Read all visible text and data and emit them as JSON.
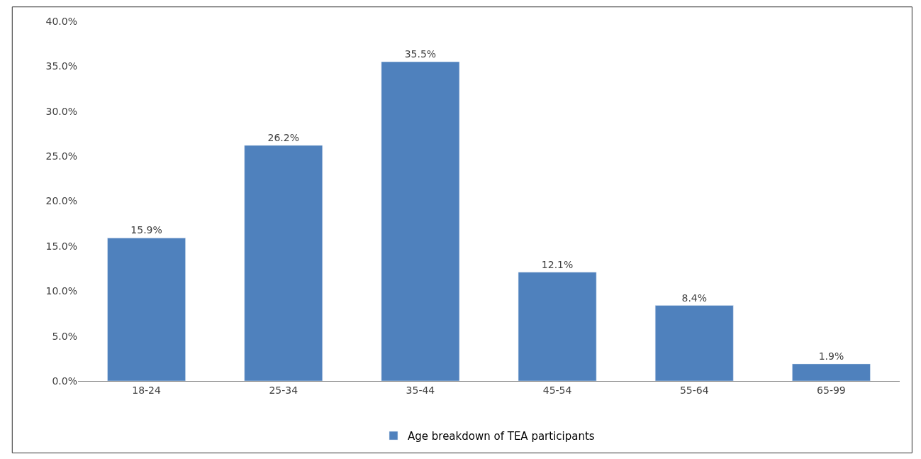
{
  "chart_data": {
    "type": "bar",
    "categories": [
      "18-24",
      "25-34",
      "35-44",
      "45-54",
      "55-64",
      "65-99"
    ],
    "series": [
      {
        "name": "Age breakdown of TEA participants",
        "color": "#4f81bd",
        "values": [
          15.9,
          26.2,
          35.5,
          12.1,
          8.4,
          1.9
        ],
        "value_labels": [
          "15.9%",
          "26.2%",
          "35.5%",
          "12.1%",
          "8.4%",
          "1.9%"
        ]
      }
    ],
    "ylim": [
      0,
      40
    ],
    "yticks": [
      {
        "value": 0,
        "label": "0.0%"
      },
      {
        "value": 5,
        "label": "5.0%"
      },
      {
        "value": 10,
        "label": "10.0%"
      },
      {
        "value": 15,
        "label": "15.0%"
      },
      {
        "value": 20,
        "label": "20.0%"
      },
      {
        "value": 25,
        "label": "25.0%"
      },
      {
        "value": 30,
        "label": "30.0%"
      },
      {
        "value": 35,
        "label": "35.0%"
      },
      {
        "value": 40,
        "label": "40.0%"
      }
    ],
    "legend": "bottom"
  }
}
